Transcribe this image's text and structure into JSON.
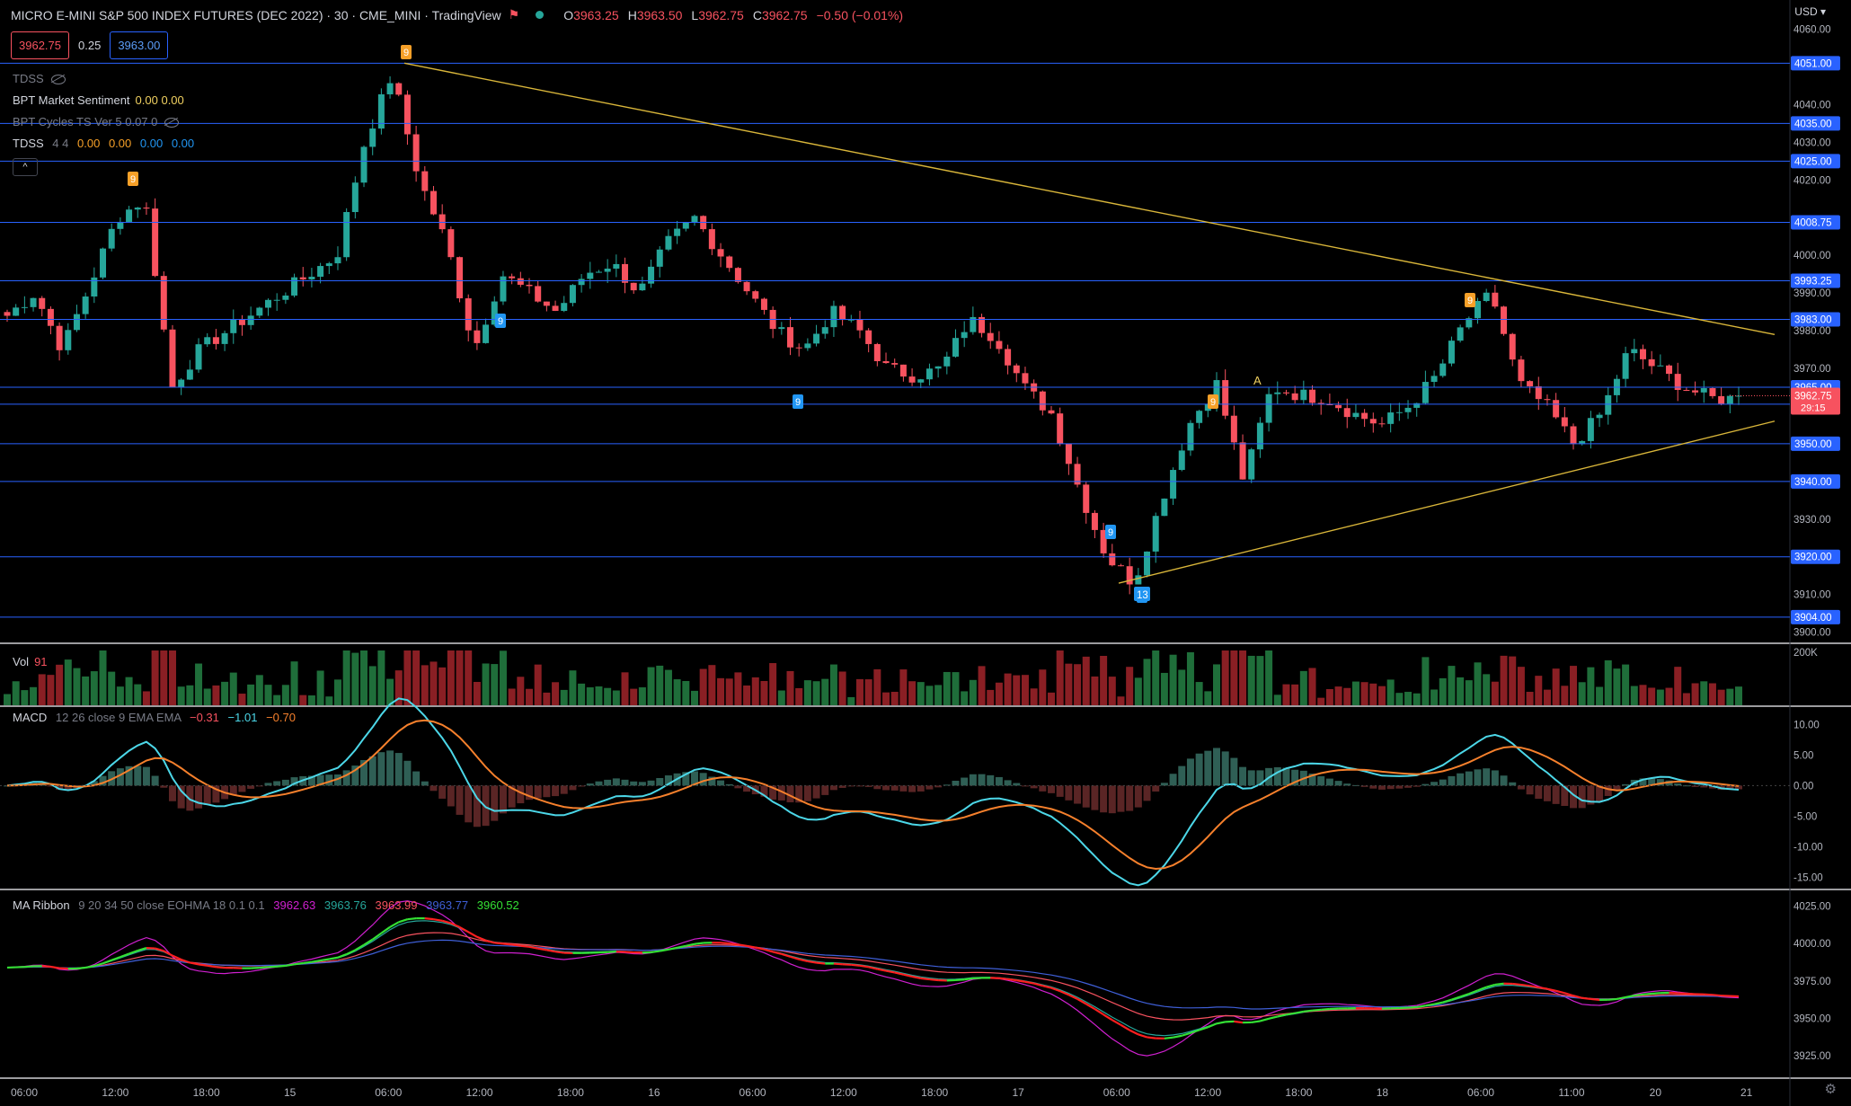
{
  "header": {
    "title": "MICRO E-MINI S&P 500 INDEX FUTURES (DEC 2022) · 30 · CME_MINI · TradingView",
    "ohlc": {
      "o_label": "O",
      "o": "3963.25",
      "h_label": "H",
      "h": "3963.50",
      "l_label": "L",
      "l": "3962.75",
      "c_label": "C",
      "c": "3962.75",
      "change": "−0.50 (−0.01%)"
    },
    "sell_price": "3962.75",
    "spread": "0.25",
    "buy_price": "3963.00",
    "currency": "USD"
  },
  "indicators": {
    "tdss": "TDSS",
    "bpt_label": "BPT Market Sentiment",
    "bpt_values": "0.00  0.00",
    "bpt_cycles": "BPT Cycles TS Ver 5 0.07 0",
    "tdss2_label": "TDSS",
    "tdss2_params": "4 4",
    "tdss2_v1": "0.00",
    "tdss2_v2": "0.00",
    "tdss2_v3": "0.00",
    "tdss2_v4": "0.00",
    "collapse": "^"
  },
  "panes": {
    "vol_label": "Vol",
    "vol_value": "91",
    "macd_label": "MACD",
    "macd_params": "12 26 close 9 EMA EMA",
    "macd_v1": "−0.31",
    "macd_v2": "−1.01",
    "macd_v3": "−0.70",
    "ribbon_label": "MA Ribbon",
    "ribbon_params": "9 20 34 50 close EOHMA 18 0.1 0.1",
    "ribbon_v1": "3962.63",
    "ribbon_v2": "3963.76",
    "ribbon_v3": "3963.99",
    "ribbon_v4": "3963.77",
    "ribbon_v5": "3960.52"
  },
  "colors": {
    "up": "#26a69a",
    "down": "#f7525f",
    "level": "#2962ff",
    "trend": "#d9b63a",
    "macd": "#4cd7e8",
    "signal": "#f6802c"
  },
  "chart_data": [
    {
      "type": "candlestick",
      "title": "MICRO E-MINI S&P 500 INDEX FUTURES (DEC 2022) · 30 · CME_MINI",
      "ylim": [
        3898,
        4063
      ],
      "y_ticks": [
        "4060.00",
        "4040.00",
        "4030.00",
        "4020.00",
        "4000.00",
        "3990.00",
        "3980.00",
        "3970.00",
        "3930.00",
        "3910.00",
        "3900.00"
      ],
      "level_labels": [
        "4051.00",
        "4035.00",
        "4025.00",
        "4008.75",
        "3993.25",
        "3983.00",
        "3965.00",
        "3960.50",
        "3950.00",
        "3940.00",
        "3920.00",
        "3904.00"
      ],
      "current_price": "3962.75",
      "countdown": "29:15",
      "x_ticks": [
        "06:00",
        "12:00",
        "18:00",
        "15",
        "06:00",
        "12:00",
        "18:00",
        "16",
        "06:00",
        "12:00",
        "18:00",
        "17",
        "06:00",
        "12:00",
        "18:00",
        "18",
        "06:00",
        "11:00",
        "20",
        "21"
      ],
      "anchors": [
        3984,
        3990,
        3975,
        3992,
        4010,
        4015,
        3965,
        3975,
        3980,
        3985,
        3990,
        3995,
        4000,
        4030,
        4048,
        4020,
        4003,
        3975,
        3995,
        3990,
        3985,
        3995,
        3998,
        3990,
        4003,
        4010,
        4000,
        3990,
        3980,
        3975,
        3985,
        3980,
        3970,
        3968,
        3970,
        3983,
        3978,
        3965,
        3958,
        3938,
        3920,
        3913,
        3935,
        3955,
        3966,
        3940,
        3965,
        3963,
        3962,
        3958,
        3955,
        3960,
        3968,
        3982,
        3990,
        3966,
        3960,
        3950,
        3958,
        3975,
        3970,
        3965,
        3962,
        3962
      ],
      "td_labels": [
        "9",
        "9",
        "9",
        "9",
        "9",
        "9",
        "13",
        "9",
        "9",
        "A"
      ]
    },
    {
      "type": "bar",
      "name": "Vol",
      "y_ticks": [
        "200K"
      ]
    },
    {
      "type": "line",
      "name": "MACD",
      "ylim": [
        -17,
        13
      ],
      "y_ticks": [
        "10.00",
        "5.00",
        "0.00",
        "-5.00",
        "-10.00",
        "-15.00"
      ]
    },
    {
      "type": "line",
      "name": "MA Ribbon",
      "ylim": [
        3910,
        4035
      ],
      "y_ticks": [
        "4025.00",
        "4000.00",
        "3975.00",
        "3950.00",
        "3925.00"
      ]
    }
  ]
}
